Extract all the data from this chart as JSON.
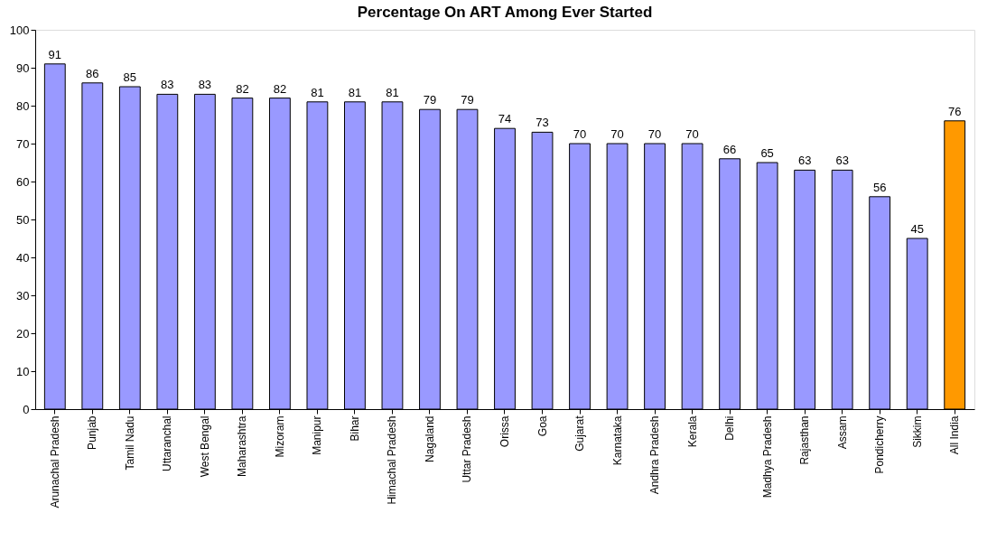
{
  "chart_data": {
    "type": "bar",
    "title": "Percentage On ART Among Ever Started",
    "categories": [
      "Arunachal Pradesh",
      "Punjab",
      "Tamil Nadu",
      "Uttaranchal",
      "West Bengal",
      "Maharashtra",
      "Mizoram",
      "Manipur",
      "Bihar",
      "Himachal Pradesh",
      "Nagaland",
      "Uttar Pradesh",
      "Orissa",
      "Goa",
      "Gujarat",
      "Karnataka",
      "Andhra Pradesh",
      "Kerala",
      "Delhi",
      "Madhya Pradesh",
      "Rajasthan",
      "Assam",
      "Pondicherry",
      "Sikkim",
      "All India"
    ],
    "values": [
      91,
      86,
      85,
      83,
      83,
      82,
      82,
      81,
      81,
      81,
      79,
      79,
      74,
      73,
      70,
      70,
      70,
      70,
      66,
      65,
      63,
      63,
      56,
      45,
      76
    ],
    "colors": [
      "#9999ff",
      "#9999ff",
      "#9999ff",
      "#9999ff",
      "#9999ff",
      "#9999ff",
      "#9999ff",
      "#9999ff",
      "#9999ff",
      "#9999ff",
      "#9999ff",
      "#9999ff",
      "#9999ff",
      "#9999ff",
      "#9999ff",
      "#9999ff",
      "#9999ff",
      "#9999ff",
      "#9999ff",
      "#9999ff",
      "#9999ff",
      "#9999ff",
      "#9999ff",
      "#9999ff",
      "#ff9900"
    ],
    "ylim": [
      0,
      100
    ],
    "yticks": [
      0,
      10,
      20,
      30,
      40,
      50,
      60,
      70,
      80,
      90,
      100
    ],
    "data_labels": true,
    "grid": false
  }
}
